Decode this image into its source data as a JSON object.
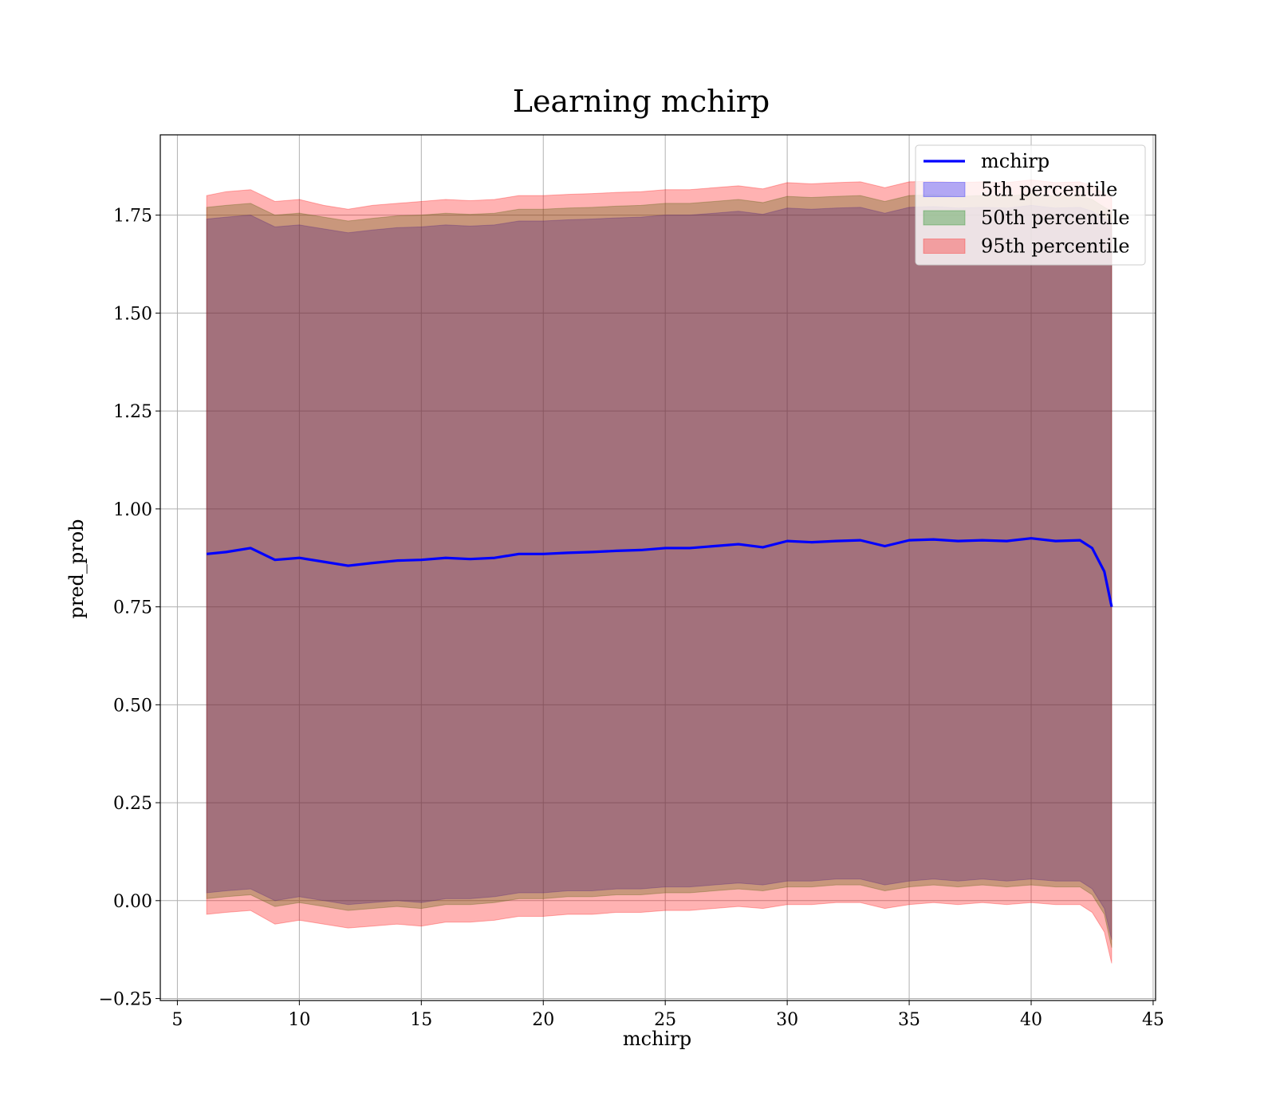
{
  "chart_data": {
    "type": "line",
    "title": "Learning mchirp",
    "xlabel": "mchirp",
    "ylabel": "pred_prob",
    "xlim": [
      4.3,
      45.1
    ],
    "ylim": [
      -0.255,
      1.955
    ],
    "xticks": [
      5,
      10,
      15,
      20,
      25,
      30,
      35,
      40,
      45
    ],
    "xtick_labels": [
      "5",
      "10",
      "15",
      "20",
      "25",
      "30",
      "35",
      "40",
      "45"
    ],
    "yticks": [
      -0.25,
      0,
      0.25,
      0.5,
      0.75,
      1.0,
      1.25,
      1.5,
      1.75
    ],
    "ytick_labels": [
      "−0.25",
      "0.00",
      "0.25",
      "0.50",
      "0.75",
      "1.00",
      "1.25",
      "1.50",
      "1.75"
    ],
    "grid": true,
    "legend_position": "top-right",
    "legend": [
      {
        "label": "mchirp",
        "kind": "line",
        "color": "#0000ff"
      },
      {
        "label": "5th percentile",
        "kind": "band",
        "color": "#0000ff"
      },
      {
        "label": "50th percentile",
        "kind": "band",
        "color": "#008000"
      },
      {
        "label": "95th percentile",
        "kind": "band",
        "color": "#ff0000"
      }
    ],
    "x": [
      6.2,
      7,
      8,
      9,
      10,
      11,
      12,
      13,
      14,
      15,
      16,
      17,
      18,
      19,
      20,
      21,
      22,
      23,
      24,
      25,
      26,
      27,
      28,
      29,
      30,
      31,
      32,
      33,
      34,
      35,
      36,
      37,
      38,
      39,
      40,
      41,
      42,
      42.5,
      43,
      43.3
    ],
    "series": [
      {
        "name": "mchirp",
        "kind": "line",
        "color": "#0000ff",
        "values": [
          0.885,
          0.89,
          0.9,
          0.87,
          0.875,
          0.865,
          0.855,
          0.862,
          0.868,
          0.87,
          0.875,
          0.872,
          0.875,
          0.885,
          0.885,
          0.888,
          0.89,
          0.893,
          0.895,
          0.9,
          0.9,
          0.905,
          0.91,
          0.902,
          0.918,
          0.915,
          0.918,
          0.92,
          0.905,
          0.92,
          0.922,
          0.918,
          0.92,
          0.918,
          0.925,
          0.918,
          0.92,
          0.9,
          0.84,
          0.75
        ]
      },
      {
        "name": "5th percentile",
        "kind": "band",
        "color": "#0000ff",
        "lower": [
          0.02,
          0.025,
          0.03,
          0.0,
          0.01,
          0.0,
          -0.01,
          -0.005,
          0.0,
          -0.005,
          0.005,
          0.005,
          0.01,
          0.02,
          0.02,
          0.025,
          0.025,
          0.03,
          0.03,
          0.035,
          0.035,
          0.04,
          0.045,
          0.04,
          0.05,
          0.05,
          0.055,
          0.055,
          0.04,
          0.05,
          0.055,
          0.05,
          0.055,
          0.05,
          0.055,
          0.05,
          0.05,
          0.03,
          -0.02,
          -0.1
        ],
        "upper": [
          1.74,
          1.745,
          1.75,
          1.72,
          1.725,
          1.715,
          1.705,
          1.712,
          1.718,
          1.72,
          1.725,
          1.722,
          1.725,
          1.735,
          1.735,
          1.738,
          1.74,
          1.743,
          1.745,
          1.75,
          1.75,
          1.755,
          1.76,
          1.752,
          1.768,
          1.765,
          1.768,
          1.77,
          1.755,
          1.77,
          1.772,
          1.768,
          1.77,
          1.768,
          1.775,
          1.768,
          1.77,
          1.76,
          1.74,
          1.73
        ]
      },
      {
        "name": "50th percentile",
        "kind": "band",
        "color": "#008000",
        "lower": [
          0.005,
          0.01,
          0.015,
          -0.015,
          -0.005,
          -0.015,
          -0.025,
          -0.02,
          -0.015,
          -0.02,
          -0.01,
          -0.01,
          -0.005,
          0.005,
          0.005,
          0.01,
          0.01,
          0.015,
          0.015,
          0.02,
          0.02,
          0.025,
          0.03,
          0.025,
          0.035,
          0.035,
          0.04,
          0.04,
          0.025,
          0.035,
          0.04,
          0.035,
          0.04,
          0.035,
          0.04,
          0.035,
          0.035,
          0.015,
          -0.035,
          -0.12
        ],
        "upper": [
          1.77,
          1.775,
          1.78,
          1.75,
          1.755,
          1.745,
          1.735,
          1.742,
          1.748,
          1.75,
          1.755,
          1.752,
          1.755,
          1.765,
          1.765,
          1.768,
          1.77,
          1.773,
          1.775,
          1.78,
          1.78,
          1.785,
          1.79,
          1.782,
          1.798,
          1.795,
          1.798,
          1.8,
          1.785,
          1.8,
          1.802,
          1.798,
          1.8,
          1.798,
          1.805,
          1.798,
          1.8,
          1.79,
          1.77,
          1.76
        ]
      },
      {
        "name": "95th percentile",
        "kind": "band",
        "color": "#ff0000",
        "lower": [
          -0.035,
          -0.03,
          -0.025,
          -0.06,
          -0.05,
          -0.06,
          -0.07,
          -0.065,
          -0.06,
          -0.065,
          -0.055,
          -0.055,
          -0.05,
          -0.04,
          -0.04,
          -0.035,
          -0.035,
          -0.03,
          -0.03,
          -0.025,
          -0.025,
          -0.02,
          -0.015,
          -0.02,
          -0.01,
          -0.01,
          -0.005,
          -0.005,
          -0.02,
          -0.01,
          -0.005,
          -0.01,
          -0.005,
          -0.01,
          -0.005,
          -0.01,
          -0.01,
          -0.03,
          -0.08,
          -0.16
        ],
        "upper": [
          1.8,
          1.81,
          1.815,
          1.785,
          1.79,
          1.775,
          1.765,
          1.775,
          1.78,
          1.785,
          1.79,
          1.787,
          1.79,
          1.8,
          1.8,
          1.803,
          1.805,
          1.808,
          1.81,
          1.815,
          1.815,
          1.82,
          1.825,
          1.817,
          1.833,
          1.83,
          1.833,
          1.835,
          1.82,
          1.835,
          1.837,
          1.833,
          1.835,
          1.833,
          1.84,
          1.833,
          1.835,
          1.825,
          1.805,
          1.795
        ]
      }
    ]
  }
}
